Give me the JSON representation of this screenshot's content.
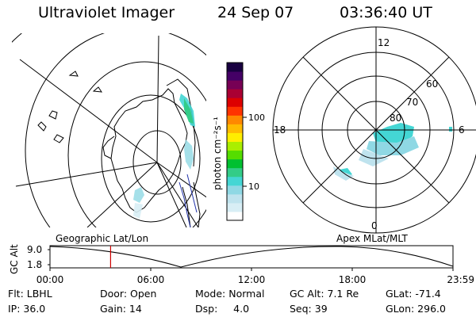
{
  "header": {
    "instrument": "Ultraviolet Imager",
    "date": "24 Sep 07",
    "time": "03:36:40 UT"
  },
  "left_map": {
    "label": "Geographic Lat/Lon"
  },
  "right_map": {
    "label": "Apex MLat/MLT",
    "mlt_labels": {
      "top": "12",
      "left": "18",
      "right": "6",
      "bottom": "0"
    },
    "lat_labels": [
      "60",
      "70",
      "80"
    ]
  },
  "colorbar": {
    "unit_label": "photon cm⁻²s⁻¹",
    "ticks": [
      {
        "label": "100",
        "value": 100
      },
      {
        "label": "10",
        "value": 10
      }
    ],
    "colors": [
      "#ffffff",
      "#d8eef5",
      "#bfe3ee",
      "#8fd8e4",
      "#44d6d4",
      "#33cc88",
      "#00c030",
      "#55dd00",
      "#aaee00",
      "#ffee00",
      "#ffbb00",
      "#ff8800",
      "#ff3300",
      "#dd0000",
      "#aa0033",
      "#770055",
      "#440066",
      "#180040"
    ]
  },
  "altitude_strip": {
    "ylabel": "GC Alt",
    "yticks": [
      "9.0",
      "1.8"
    ],
    "xticks": [
      "00:00",
      "06:00",
      "12:00",
      "18:00",
      "23:59"
    ],
    "marker_time_hours": 3.61,
    "marker_color": "#cc0000"
  },
  "footer": {
    "rows": [
      [
        "Flt: LBHL",
        "Door: Open",
        "Mode: Normal",
        "GC Alt: 7.1 Re",
        "GLat: -71.4"
      ],
      [
        "IP: 36.0",
        "Gain: 14",
        "Dsp:     4.0",
        "Seq: 39",
        "GLon: 296.0"
      ]
    ]
  }
}
